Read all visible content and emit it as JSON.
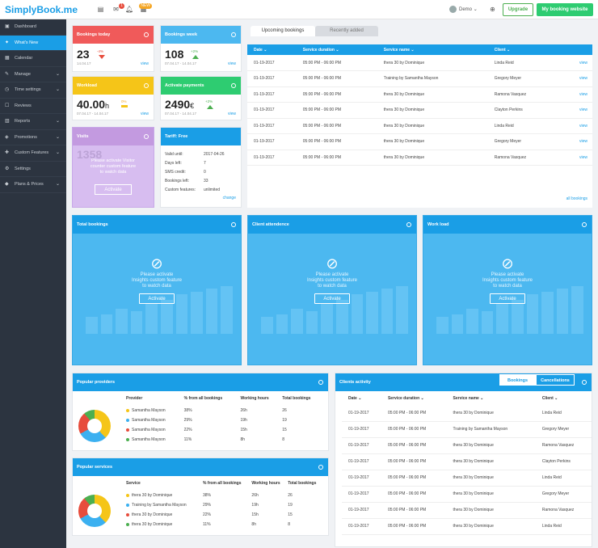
{
  "app": {
    "logo_text": "SimplyBook.me"
  },
  "topbar": {
    "notification_badges": [
      "1",
      "NEW"
    ],
    "user": "Demo",
    "upgrade_label": "Upgrade",
    "site_label": "My booking website"
  },
  "sidebar": {
    "items": [
      {
        "label": "Dashboard",
        "icon": "dashboard-icon",
        "chevron": false
      },
      {
        "label": "What's New",
        "icon": "bulb-icon",
        "chevron": false,
        "active": true
      },
      {
        "label": "Calendar",
        "icon": "calendar-icon",
        "chevron": false
      },
      {
        "label": "Manage",
        "icon": "pencil-icon",
        "chevron": true
      },
      {
        "label": "Time settings",
        "icon": "clock-icon",
        "chevron": true
      },
      {
        "label": "Reviews",
        "icon": "chat-icon",
        "chevron": false
      },
      {
        "label": "Reports",
        "icon": "chart-icon",
        "chevron": true
      },
      {
        "label": "Promotions",
        "icon": "gift-icon",
        "chevron": true
      },
      {
        "label": "Custom Features",
        "icon": "puzzle-icon",
        "chevron": true
      },
      {
        "label": "Settings",
        "icon": "gear-icon",
        "chevron": false
      },
      {
        "label": "Plans & Prices",
        "icon": "tag-icon",
        "chevron": true
      }
    ]
  },
  "stats": {
    "today": {
      "title": "Bookings today",
      "value": "23",
      "date": "14.04.17",
      "delta": "-4%",
      "view": "view"
    },
    "week": {
      "title": "Bookings week",
      "value": "108",
      "date": "07.04.17 - 14.04.17",
      "delta": "+2%",
      "view": "view"
    },
    "workload": {
      "title": "Workload",
      "value": "40.00",
      "unit": "h",
      "date": "07.04.17 - 14.04.17",
      "delta": "0%",
      "view": "view"
    },
    "payments": {
      "title": "Activate payments",
      "value": "2490",
      "unit": "€",
      "date": "07.04.17 - 14.04.17",
      "delta": "+2%",
      "view": "view"
    },
    "visits": {
      "title": "Visits",
      "value": "1358",
      "message_lines": [
        "Please activate Visitor",
        "counter custom feature",
        "to watch data"
      ],
      "activate_label": "Activate"
    }
  },
  "tariff": {
    "title": "Tariff: Free",
    "rows": [
      {
        "label": "Valid until:",
        "value": "2017-04-26"
      },
      {
        "label": "Days left:",
        "value": "7"
      },
      {
        "label": "SMS credit:",
        "value": "0"
      },
      {
        "label": "Bookings left:",
        "value": "33"
      },
      {
        "label": "Custom features:",
        "value": "unlimited"
      }
    ],
    "change_label": "change"
  },
  "bookings": {
    "tabs": [
      "Upcoming bookings",
      "Recently added"
    ],
    "columns": [
      "Date",
      "Service duration",
      "Service name",
      "Client"
    ],
    "rows": [
      [
        "01-19-2017",
        "05:00 PM - 06:00 PM",
        "thera 30 by Dominique",
        "Linda Reid"
      ],
      [
        "01-19-2017",
        "05:00 PM - 06:00 PM",
        "Training by Samantha Mayson",
        "Gregory Meyer"
      ],
      [
        "01-19-2017",
        "05:00 PM - 06:00 PM",
        "thera 30 by Dominique",
        "Ramona Vasquez"
      ],
      [
        "01-19-2017",
        "05:00 PM - 06:00 PM",
        "thera 30 by Dominique",
        "Clayton Perkins"
      ],
      [
        "01-19-2017",
        "05:00 PM - 06:00 PM",
        "thera 30 by Dominique",
        "Linda Reid"
      ],
      [
        "01-19-2017",
        "05:00 PM - 06:00 PM",
        "thera 30 by Dominique",
        "Gregory Meyer"
      ],
      [
        "01-19-2017",
        "05:00 PM - 06:00 PM",
        "thera 30 by Dominique",
        "Ramona Vasquez"
      ]
    ],
    "row_action": "view",
    "all_label": "all bookings"
  },
  "insights": {
    "panels": [
      {
        "title": "Total bookings"
      },
      {
        "title": "Client attendence"
      },
      {
        "title": "Work load"
      }
    ],
    "message_lines": [
      "Please activate",
      "Insights custom feature",
      "to watch data"
    ],
    "activate_label": "Activate",
    "bar_levels": [
      0.3,
      0.35,
      0.45,
      0.4,
      0.55,
      0.6,
      0.7,
      0.75,
      0.8,
      0.85
    ]
  },
  "providers": {
    "title": "Popular providers",
    "columns": [
      "Provider",
      "% from all bookings",
      "Working hours",
      "Total bookings"
    ],
    "rows": [
      {
        "name": "Samantha Mayson",
        "pct": "38%",
        "hours": "26h",
        "total": "26",
        "color": "#f5c518"
      },
      {
        "name": "Samantha Mayson",
        "pct": "29%",
        "hours": "19h",
        "total": "19",
        "color": "#3bb0f0"
      },
      {
        "name": "Samantha Mayson",
        "pct": "22%",
        "hours": "15h",
        "total": "15",
        "color": "#e74c3c"
      },
      {
        "name": "Samantha Mayson",
        "pct": "11%",
        "hours": "8h",
        "total": "8",
        "color": "#4caf50"
      }
    ]
  },
  "services": {
    "title": "Popular services",
    "columns": [
      "Service",
      "% from all bookings",
      "Working hours",
      "Total bookings"
    ],
    "rows": [
      {
        "name": "thera 30 by Dominique",
        "pct": "38%",
        "hours": "26h",
        "total": "26",
        "color": "#f5c518"
      },
      {
        "name": "Training by Samantha Mayson",
        "pct": "29%",
        "hours": "19h",
        "total": "19",
        "color": "#3bb0f0"
      },
      {
        "name": "thera 30 by Dominique",
        "pct": "22%",
        "hours": "15h",
        "total": "15",
        "color": "#e74c3c"
      },
      {
        "name": "thera 30 by Dominique",
        "pct": "11%",
        "hours": "8h",
        "total": "8",
        "color": "#4caf50"
      }
    ]
  },
  "clients_activity": {
    "title": "Clients activity",
    "toggle": [
      "Bookings",
      "Cancellations"
    ],
    "columns": [
      "Date",
      "Service duration",
      "Service name",
      "Client"
    ],
    "rows": [
      [
        "01-19-2017",
        "05:00 PM - 06:00 PM",
        "thera 30 by Dominique",
        "Linda Reid"
      ],
      [
        "01-19-2017",
        "05:00 PM - 06:00 PM",
        "Training by Samantha Mayson",
        "Gregory Meyer"
      ],
      [
        "01-19-2017",
        "05:00 PM - 06:00 PM",
        "thera 30 by Dominique",
        "Ramona Vasquez"
      ],
      [
        "01-19-2017",
        "05:00 PM - 06:00 PM",
        "thera 30 by Dominique",
        "Clayton Perkins"
      ],
      [
        "01-19-2017",
        "05:00 PM - 06:00 PM",
        "thera 30 by Dominique",
        "Linda Reid"
      ],
      [
        "01-19-2017",
        "05:00 PM - 06:00 PM",
        "thera 30 by Dominique",
        "Gregory Meyer"
      ],
      [
        "01-19-2017",
        "05:00 PM - 06:00 PM",
        "thera 30 by Dominique",
        "Ramona Vasquez"
      ],
      [
        "01-19-2017",
        "05:00 PM - 06:00 PM",
        "thera 30 by Dominique",
        "Linda Reid"
      ]
    ]
  },
  "colors": {
    "accent": "#1a9ee6",
    "red": "#f05a5a",
    "sky": "#4cb8f0",
    "yellow": "#f5c518",
    "green": "#2ecc71",
    "purple": "#c39ae0"
  }
}
